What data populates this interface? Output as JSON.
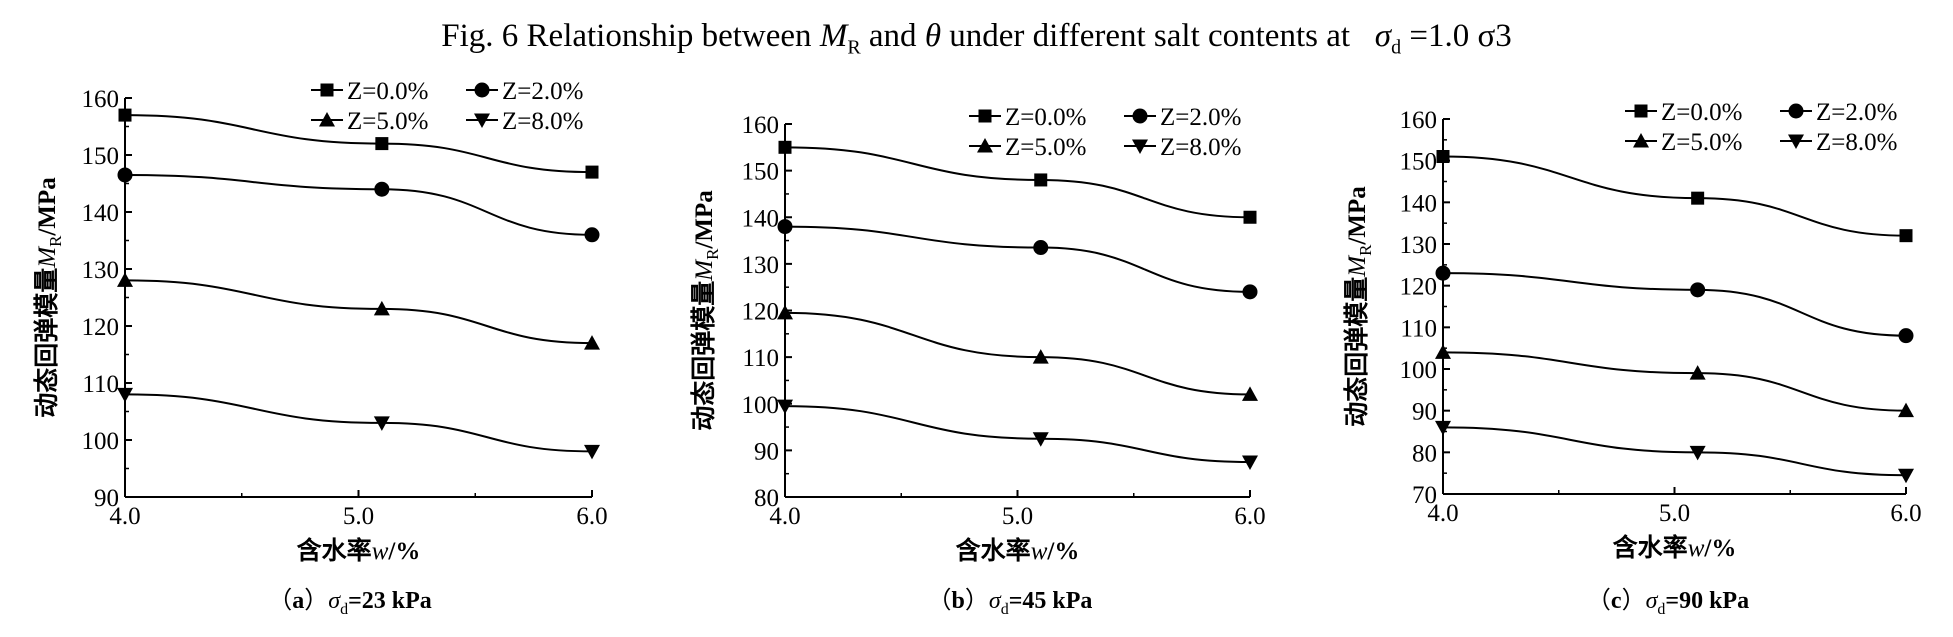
{
  "figure": {
    "title_prefix": "Fig. 6 Relationship between",
    "title_mr": "M",
    "title_mr_sub": "R",
    "title_and": "and",
    "title_theta": "θ",
    "title_middle": "under different salt contents at",
    "title_sigma": "σ",
    "title_sigma_sub": "d",
    "title_suffix": "=1.0 σ3"
  },
  "chart_data": [
    {
      "type": "line",
      "caption": "（a）σd=23 kPa",
      "caption_open": "（",
      "caption_letter": "a",
      "caption_close": "）",
      "caption_sigma": "σ",
      "caption_sub": "d",
      "caption_rest": "=23 kPa",
      "xlabel": "含水率w/%",
      "xlabel_cn": "含水率",
      "xlabel_var": "w",
      "xlabel_unit": "/%",
      "ylabel": "动态回弹模量MR/MPa",
      "ylabel_cn": "动态回弹模量",
      "ylabel_var": "M",
      "ylabel_sub": "R",
      "ylabel_unit": "/MPa",
      "xlim": [
        4.0,
        6.0
      ],
      "xticks": [
        "4.0",
        "5.0",
        "6.0"
      ],
      "ylim": [
        90,
        160
      ],
      "yticks": [
        "90",
        "100",
        "110",
        "120",
        "130",
        "140",
        "150",
        "160"
      ],
      "x": [
        4.0,
        5.1,
        6.0
      ],
      "series": [
        {
          "name": "Z=0.0%",
          "marker": "square",
          "values": [
            157,
            152,
            147
          ]
        },
        {
          "name": "Z=2.0%",
          "marker": "circle",
          "values": [
            146.5,
            144,
            136
          ]
        },
        {
          "name": "Z=5.0%",
          "marker": "triangle-up",
          "values": [
            128,
            123,
            117
          ]
        },
        {
          "name": "Z=8.0%",
          "marker": "triangle-down",
          "values": [
            108,
            103,
            98
          ]
        }
      ],
      "legend_placement": "top-right",
      "grid": false
    },
    {
      "type": "line",
      "caption": "（b）σd=45 kPa",
      "caption_open": "（",
      "caption_letter": "b",
      "caption_close": "）",
      "caption_sigma": "σ",
      "caption_sub": "d",
      "caption_rest": "=45 kPa",
      "xlabel": "含水率w/%",
      "xlabel_cn": "含水率",
      "xlabel_var": "w",
      "xlabel_unit": "/%",
      "ylabel": "动态回弹模量MR/MPa",
      "ylabel_cn": "动态回弹模量",
      "ylabel_var": "M",
      "ylabel_sub": "R",
      "ylabel_unit": "/MPa",
      "xlim": [
        4.0,
        6.0
      ],
      "xticks": [
        "4.0",
        "5.0",
        "6.0"
      ],
      "ylim": [
        80,
        160
      ],
      "yticks": [
        "80",
        "90",
        "100",
        "110",
        "120",
        "130",
        "140",
        "150",
        "160"
      ],
      "x": [
        4.0,
        5.1,
        6.0
      ],
      "series": [
        {
          "name": "Z=0.0%",
          "marker": "square",
          "values": [
            155,
            148,
            140
          ]
        },
        {
          "name": "Z=2.0%",
          "marker": "circle",
          "values": [
            138,
            133.5,
            124
          ]
        },
        {
          "name": "Z=5.0%",
          "marker": "triangle-up",
          "values": [
            119.5,
            110,
            102
          ]
        },
        {
          "name": "Z=8.0%",
          "marker": "triangle-down",
          "values": [
            99.5,
            92.5,
            87.5
          ]
        }
      ],
      "legend_placement": "top-right",
      "grid": false
    },
    {
      "type": "line",
      "caption": "（c）σd=90 kPa",
      "caption_open": "（",
      "caption_letter": "c",
      "caption_close": "）",
      "caption_sigma": "σ",
      "caption_sub": "d",
      "caption_rest": "=90 kPa",
      "xlabel": "含水率w/%",
      "xlabel_cn": "含水率",
      "xlabel_var": "w",
      "xlabel_unit": "/%",
      "ylabel": "动态回弹模量MR/MPa",
      "ylabel_cn": "动态回弹模量",
      "ylabel_var": "M",
      "ylabel_sub": "R",
      "ylabel_unit": "/MPa",
      "xlim": [
        4.0,
        6.0
      ],
      "xticks": [
        "4.0",
        "5.0",
        "6.0"
      ],
      "ylim": [
        70,
        160
      ],
      "yticks": [
        "70",
        "80",
        "90",
        "100",
        "110",
        "120",
        "130",
        "140",
        "150",
        "160"
      ],
      "x": [
        4.0,
        5.1,
        6.0
      ],
      "series": [
        {
          "name": "Z=0.0%",
          "marker": "square",
          "values": [
            151,
            141,
            132
          ]
        },
        {
          "name": "Z=2.0%",
          "marker": "circle",
          "values": [
            123,
            119,
            108
          ]
        },
        {
          "name": "Z=5.0%",
          "marker": "triangle-up",
          "values": [
            104,
            99,
            90
          ]
        },
        {
          "name": "Z=8.0%",
          "marker": "triangle-down",
          "values": [
            86,
            80,
            74.5
          ]
        }
      ],
      "legend_placement": "top-right",
      "grid": false
    }
  ]
}
